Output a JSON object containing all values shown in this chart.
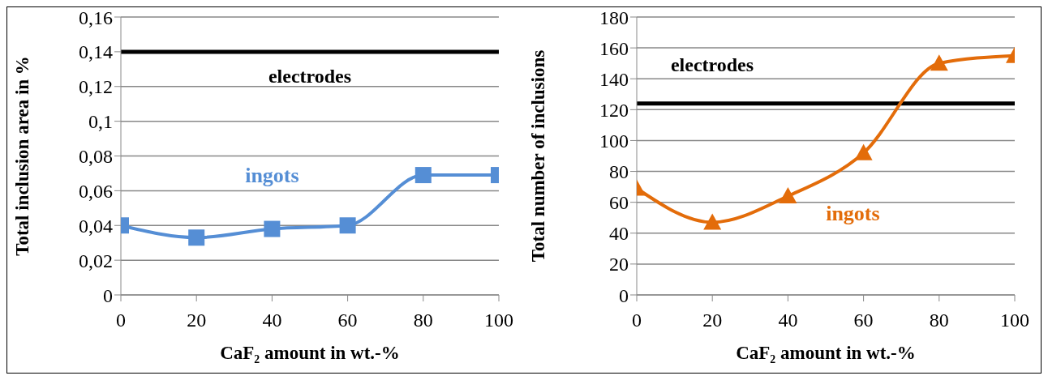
{
  "chart_data": [
    {
      "type": "line",
      "xlabel": "CaF₂ amount in wt.-%",
      "ylabel": "Total inclusion area in %",
      "x": [
        0,
        20,
        40,
        60,
        80,
        100
      ],
      "series": [
        {
          "name": "ingots",
          "color": "#558ed5",
          "values": [
            0.04,
            0.033,
            0.038,
            0.04,
            0.069,
            0.069
          ]
        }
      ],
      "ref_lines": [
        {
          "axis": "y",
          "value": 0.14,
          "label": "electrodes",
          "color": "#000000"
        }
      ],
      "xlim": [
        0,
        100
      ],
      "xticks": [
        0,
        20,
        40,
        60,
        80,
        100
      ],
      "ylim": [
        0,
        0.16
      ],
      "yticks": [
        0,
        {
          "value": 0.02,
          "label": "0,02"
        },
        {
          "value": 0.04,
          "label": "0,04"
        },
        {
          "value": 0.06,
          "label": "0,06"
        },
        {
          "value": 0.08,
          "label": "0,08"
        },
        {
          "value": 0.1,
          "label": "0,1"
        },
        {
          "value": 0.12,
          "label": "0,12"
        },
        {
          "value": 0.14,
          "label": "0,14"
        },
        {
          "value": 0.16,
          "label": "0,16"
        }
      ],
      "grid": "y",
      "legend": false,
      "marker": "square"
    },
    {
      "type": "line",
      "xlabel": "CaF₂ amount in wt.-%",
      "ylabel": "Total number of inclusions",
      "x": [
        0,
        20,
        40,
        60,
        80,
        100
      ],
      "series": [
        {
          "name": "ingots",
          "color": "#e36c0a",
          "values": [
            69,
            47,
            64,
            92,
            150,
            155
          ]
        }
      ],
      "ref_lines": [
        {
          "axis": "y",
          "value": 124,
          "label": "electrodes",
          "color": "#000000"
        }
      ],
      "xlim": [
        0,
        100
      ],
      "xticks": [
        0,
        20,
        40,
        60,
        80,
        100
      ],
      "ylim": [
        0,
        180
      ],
      "yticks": [
        0,
        20,
        40,
        60,
        80,
        100,
        120,
        140,
        160,
        180
      ],
      "grid": "y",
      "legend": false,
      "marker": "triangle"
    }
  ]
}
